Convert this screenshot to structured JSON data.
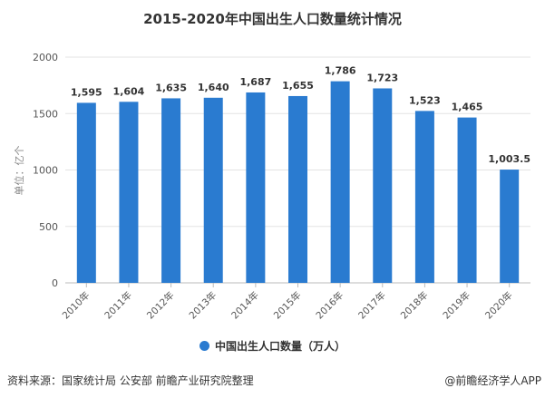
{
  "chart_data": {
    "type": "bar",
    "title": "2015-2020年中国出生人口数量统计情况",
    "ylabel": "单位：亿个",
    "xlabel": "",
    "categories": [
      "2010年",
      "2011年",
      "2012年",
      "2013年",
      "2014年",
      "2015年",
      "2016年",
      "2017年",
      "2018年",
      "2019年",
      "2020年"
    ],
    "series": [
      {
        "name": "中国出生人口数量（万人）",
        "values": [
          1595,
          1604,
          1635,
          1640,
          1687,
          1655,
          1786,
          1723,
          1523,
          1465,
          1003.5
        ]
      }
    ],
    "data_labels": [
      "1,595",
      "1,604",
      "1,635",
      "1,640",
      "1,687",
      "1,655",
      "1,786",
      "1,723",
      "1,523",
      "1,465",
      "1,003.5"
    ],
    "ylim": [
      0,
      2000
    ],
    "yticks": [
      0,
      500,
      1000,
      1500,
      2000
    ],
    "grid": true,
    "legend": "bottom",
    "color": "#2a7bd0"
  },
  "footer": {
    "source": "资料来源：国家统计局 公安部 前瞻产业研究院整理",
    "brand": "@前瞻经济学人APP"
  }
}
